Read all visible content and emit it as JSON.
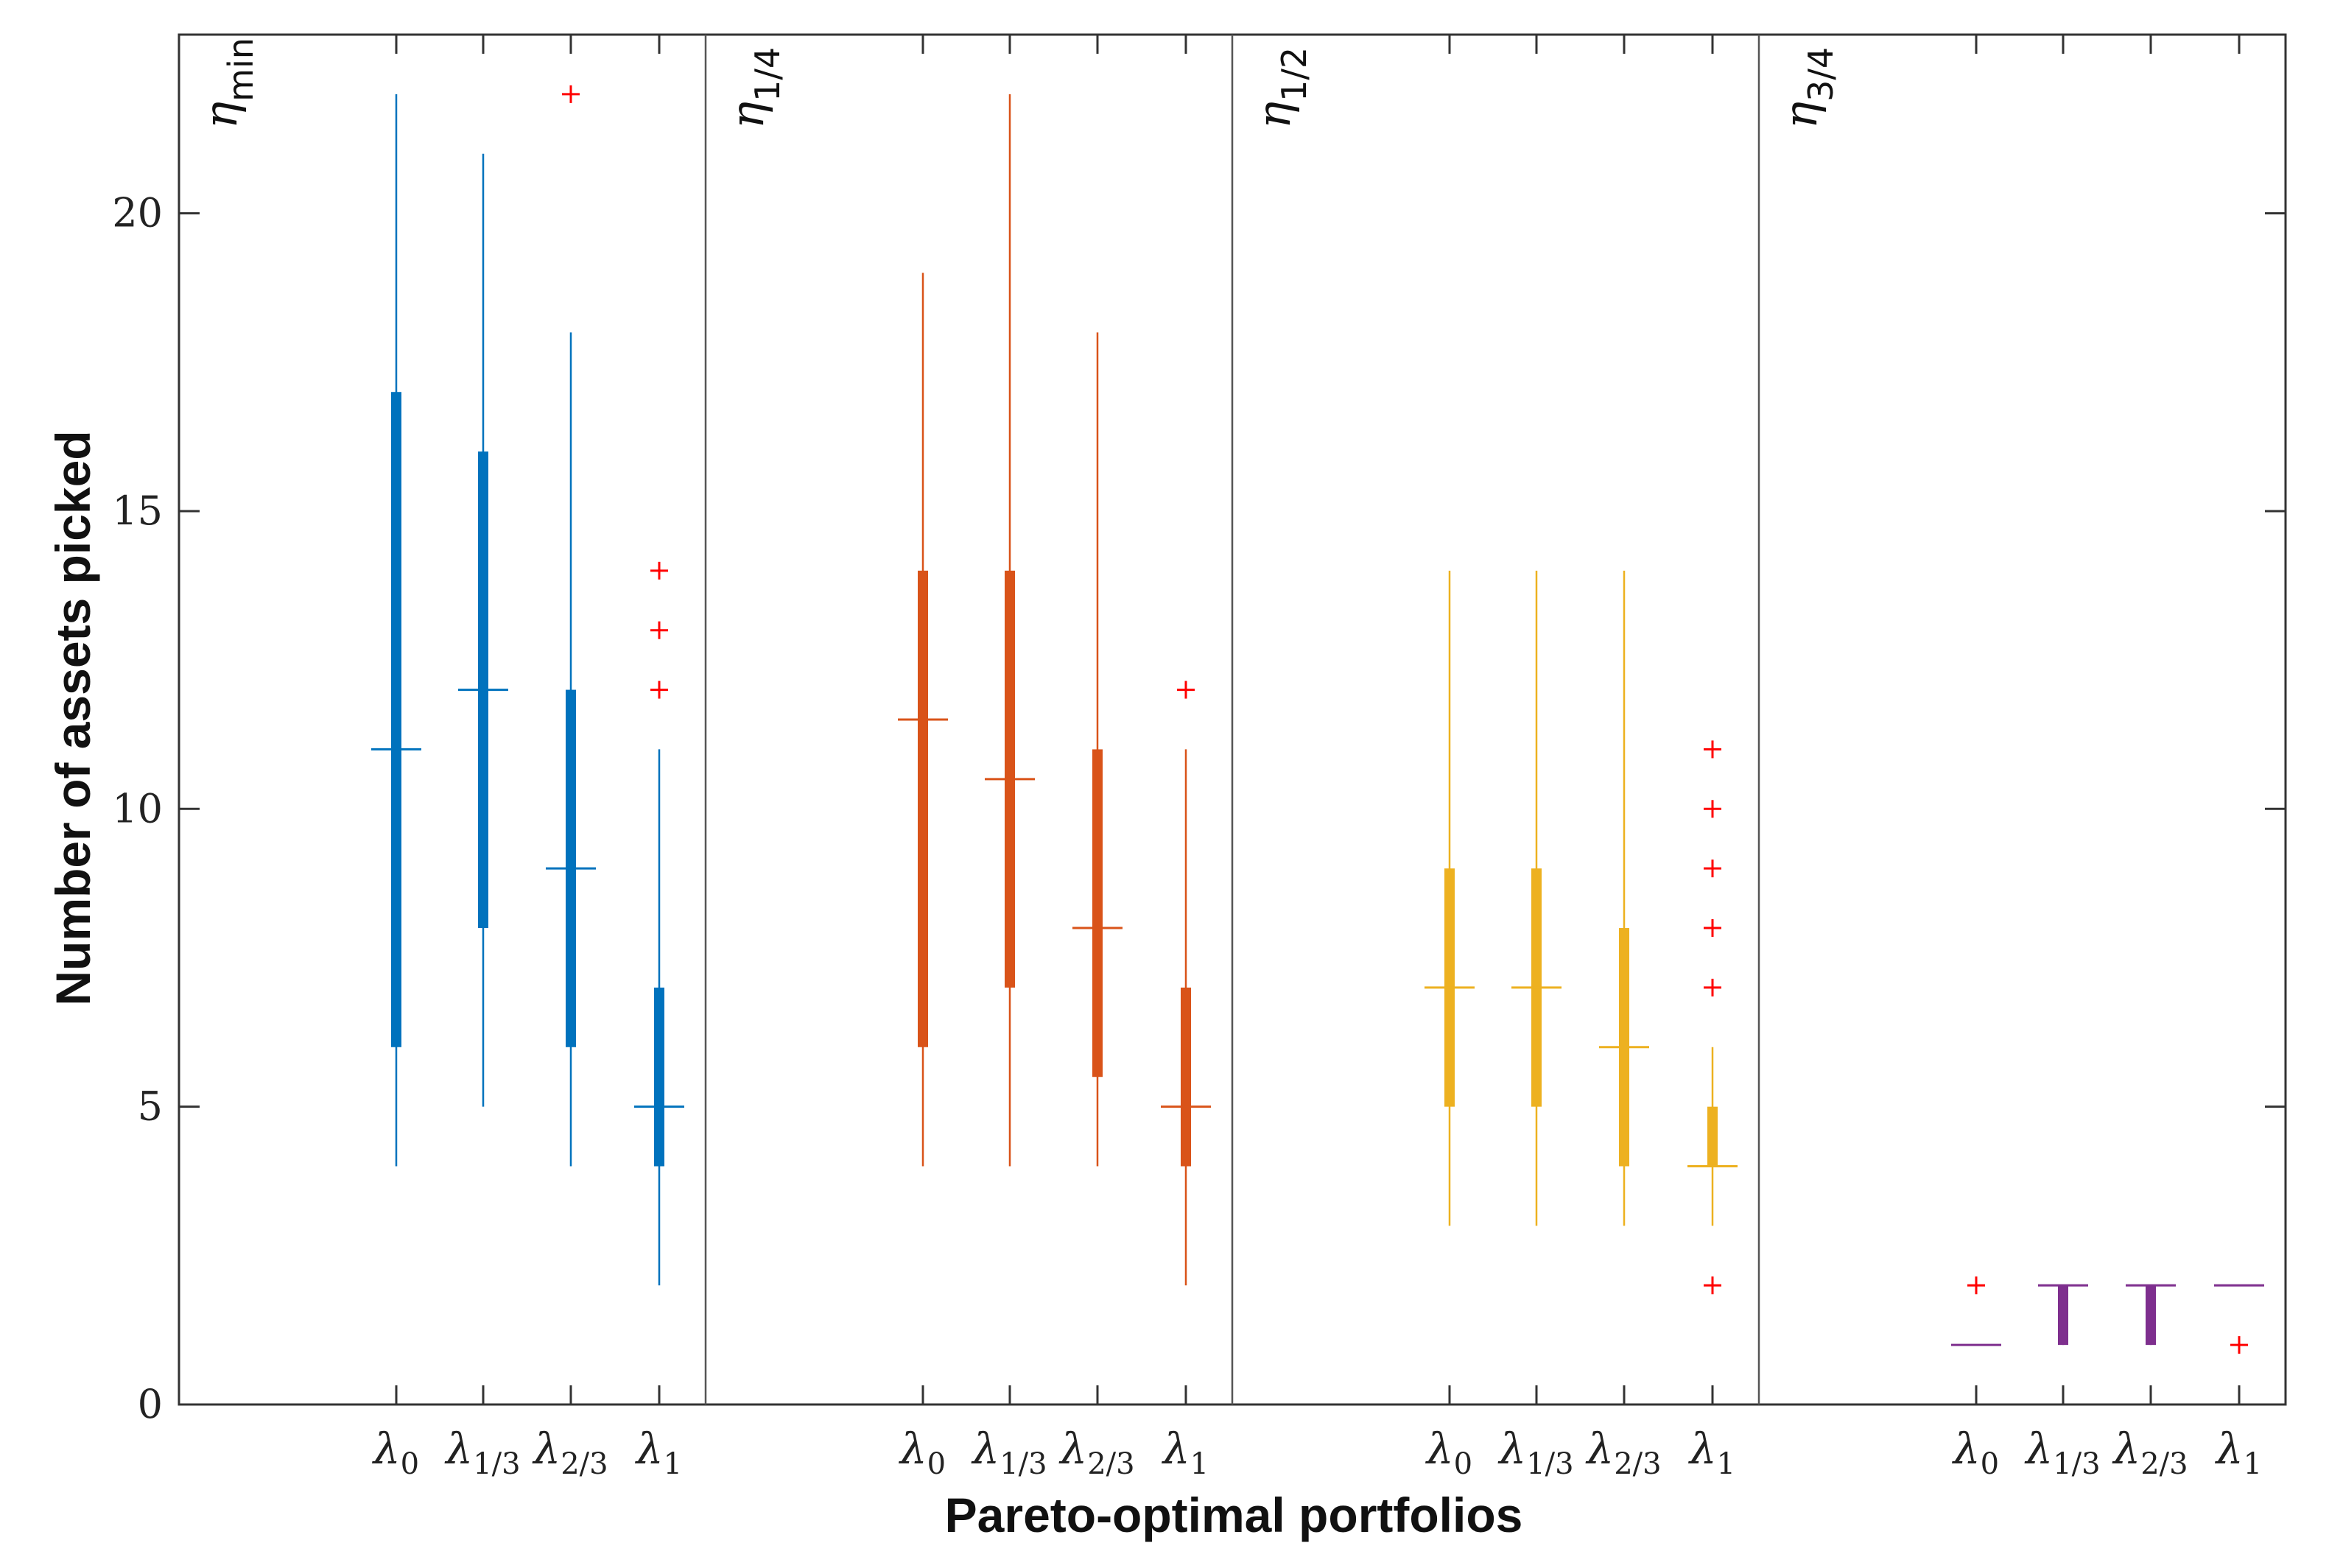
{
  "chart_data": {
    "type": "boxplot",
    "title": "",
    "xlabel": "Pareto-optimal portfolios",
    "ylabel": "Number of assets picked",
    "ylim": [
      0,
      23
    ],
    "yticks": [
      0,
      5,
      10,
      15,
      20
    ],
    "ytick_labels": [
      "0",
      "5",
      "10",
      "15",
      "20"
    ],
    "categories": [
      {
        "base": "λ",
        "sub": "0"
      },
      {
        "base": "λ",
        "sub": "1/3"
      },
      {
        "base": "λ",
        "sub": "2/3"
      },
      {
        "base": "λ",
        "sub": "1"
      }
    ],
    "outlier_color": "#ff0000",
    "groups": [
      {
        "label": {
          "base": "η",
          "sub": "min"
        },
        "color": "#0072bd",
        "boxes": [
          {
            "whisker_low": 4,
            "q1": 6,
            "median": 11,
            "q3": 17,
            "whisker_high": 22,
            "outliers": []
          },
          {
            "whisker_low": 5,
            "q1": 8,
            "median": 12,
            "q3": 16,
            "whisker_high": 21,
            "outliers": []
          },
          {
            "whisker_low": 4,
            "q1": 6,
            "median": 9,
            "q3": 12,
            "whisker_high": 18,
            "outliers": [
              22
            ]
          },
          {
            "whisker_low": 2,
            "q1": 4,
            "median": 5,
            "q3": 7,
            "whisker_high": 11,
            "outliers": [
              12,
              13,
              14
            ]
          }
        ]
      },
      {
        "label": {
          "base": "η",
          "sub": "1/4"
        },
        "color": "#d95319",
        "boxes": [
          {
            "whisker_low": 4,
            "q1": 6,
            "median": 11.5,
            "q3": 14,
            "whisker_high": 19,
            "outliers": []
          },
          {
            "whisker_low": 4,
            "q1": 7,
            "median": 10.5,
            "q3": 14,
            "whisker_high": 22,
            "outliers": []
          },
          {
            "whisker_low": 4,
            "q1": 5.5,
            "median": 8,
            "q3": 11,
            "whisker_high": 18,
            "outliers": []
          },
          {
            "whisker_low": 2,
            "q1": 4,
            "median": 5,
            "q3": 7,
            "whisker_high": 11,
            "outliers": [
              12
            ]
          }
        ]
      },
      {
        "label": {
          "base": "η",
          "sub": "1/2"
        },
        "color": "#edb120",
        "boxes": [
          {
            "whisker_low": 3,
            "q1": 5,
            "median": 7,
            "q3": 9,
            "whisker_high": 14,
            "outliers": []
          },
          {
            "whisker_low": 3,
            "q1": 5,
            "median": 7,
            "q3": 9,
            "whisker_high": 14,
            "outliers": []
          },
          {
            "whisker_low": 3,
            "q1": 4,
            "median": 6,
            "q3": 8,
            "whisker_high": 14,
            "outliers": []
          },
          {
            "whisker_low": 3,
            "q1": 4,
            "median": 4,
            "q3": 5,
            "whisker_high": 6,
            "outliers": [
              2,
              7,
              8,
              9,
              10,
              11
            ]
          }
        ]
      },
      {
        "label": {
          "base": "η",
          "sub": "3/4"
        },
        "color": "#7e2f8e",
        "boxes": [
          {
            "whisker_low": 1,
            "q1": 1,
            "median": 1,
            "q3": 1,
            "whisker_high": 1,
            "outliers": [
              2
            ]
          },
          {
            "whisker_low": 1,
            "q1": 1,
            "median": 2,
            "q3": 2,
            "whisker_high": 2,
            "outliers": []
          },
          {
            "whisker_low": 1,
            "q1": 1,
            "median": 2,
            "q3": 2,
            "whisker_high": 2,
            "outliers": []
          },
          {
            "whisker_low": 2,
            "q1": 2,
            "median": 2,
            "q3": 2,
            "whisker_high": 2,
            "outliers": [
              1
            ]
          }
        ]
      }
    ]
  }
}
